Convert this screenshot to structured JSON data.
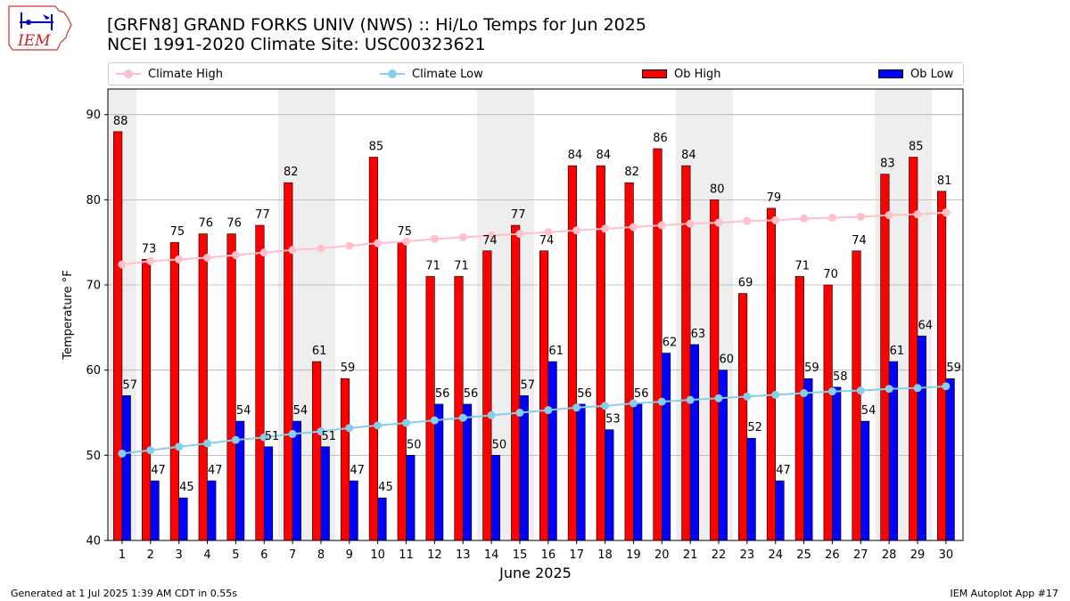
{
  "header": {
    "logo_text": "IEM",
    "title_line1": "[GRFN8] GRAND FORKS UNIV (NWS) :: Hi/Lo Temps for Jun 2025",
    "title_line2": "NCEI 1991-2020 Climate Site: USC00323621"
  },
  "legend": {
    "climate_high": "Climate High",
    "climate_low": "Climate Low",
    "ob_high": "Ob High",
    "ob_low": "Ob Low"
  },
  "colors": {
    "ob_high": "#ff0000",
    "ob_low": "#0000ff",
    "climate_high": "#ffc0cb",
    "climate_low": "#87ceeb",
    "weekend_band": "#eeeeee",
    "grid": "#b0b0b0"
  },
  "footer": {
    "left": "Generated at 1 Jul 2025 1:39 AM CDT in 0.55s",
    "right": "IEM Autoplot App #17"
  },
  "chart_data": {
    "type": "bar",
    "xlabel": "June 2025",
    "ylabel": "Temperature °F",
    "ylim": [
      40,
      93
    ],
    "yticks": [
      40,
      50,
      60,
      70,
      80,
      90
    ],
    "grid": true,
    "legend_position": "top",
    "categories": [
      1,
      2,
      3,
      4,
      5,
      6,
      7,
      8,
      9,
      10,
      11,
      12,
      13,
      14,
      15,
      16,
      17,
      18,
      19,
      20,
      21,
      22,
      23,
      24,
      25,
      26,
      27,
      28,
      29,
      30
    ],
    "weekend_days": [
      1,
      7,
      8,
      14,
      15,
      21,
      22,
      28,
      29
    ],
    "series": [
      {
        "name": "Ob High",
        "kind": "bar",
        "values": [
          88,
          73,
          75,
          76,
          76,
          77,
          82,
          61,
          59,
          85,
          75,
          71,
          71,
          74,
          77,
          74,
          84,
          84,
          82,
          86,
          84,
          80,
          69,
          79,
          71,
          70,
          74,
          83,
          85,
          81
        ]
      },
      {
        "name": "Ob Low",
        "kind": "bar",
        "values": [
          57,
          47,
          45,
          47,
          54,
          51,
          54,
          51,
          47,
          45,
          50,
          56,
          56,
          50,
          57,
          61,
          56,
          53,
          56,
          62,
          63,
          60,
          52,
          47,
          59,
          58,
          54,
          61,
          64,
          59
        ]
      },
      {
        "name": "Climate High",
        "kind": "line",
        "values": [
          72.4,
          72.8,
          73.0,
          73.2,
          73.5,
          73.8,
          74.1,
          74.3,
          74.6,
          74.9,
          75.1,
          75.4,
          75.6,
          75.8,
          76.0,
          76.2,
          76.4,
          76.6,
          76.8,
          77.0,
          77.2,
          77.3,
          77.5,
          77.6,
          77.8,
          77.9,
          78.0,
          78.2,
          78.3,
          78.5
        ]
      },
      {
        "name": "Climate Low",
        "kind": "line",
        "values": [
          50.2,
          50.6,
          51.0,
          51.4,
          51.8,
          52.1,
          52.5,
          52.8,
          53.2,
          53.5,
          53.8,
          54.1,
          54.4,
          54.7,
          55.0,
          55.3,
          55.6,
          55.8,
          56.1,
          56.3,
          56.5,
          56.7,
          56.9,
          57.1,
          57.3,
          57.5,
          57.6,
          57.8,
          57.9,
          58.1
        ]
      }
    ]
  }
}
